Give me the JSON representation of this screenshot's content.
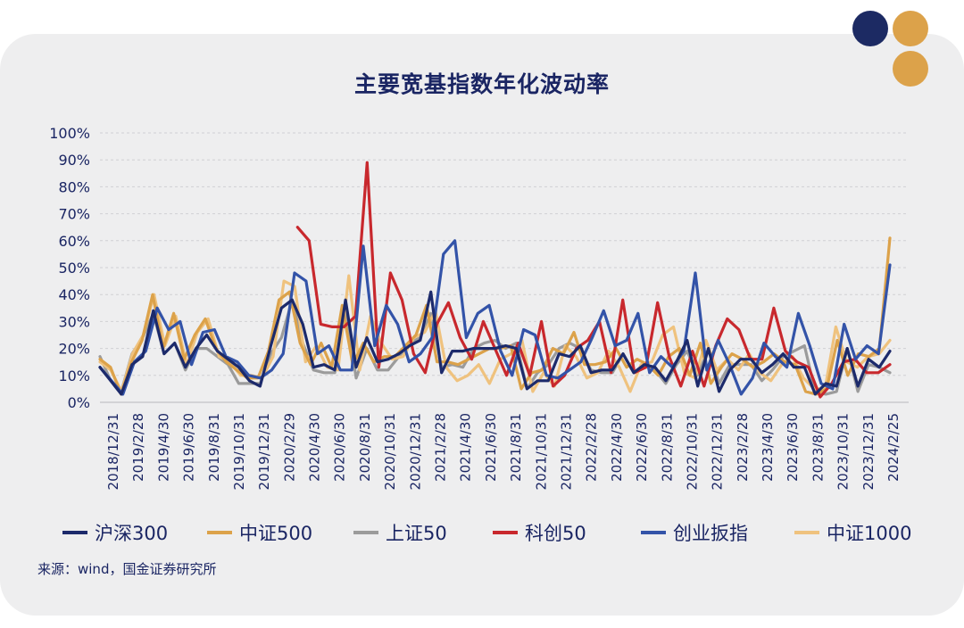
{
  "decor": {
    "colors": [
      "#1c2a63",
      "#dca24a",
      "#dca24a"
    ]
  },
  "source": "来源：wind，国金证券研究所",
  "chart_data": {
    "type": "line",
    "title": "主要宽基指数年化波动率",
    "xlabel": "",
    "ylabel": "",
    "ylim": [
      0,
      100
    ],
    "y_ticks": [
      "0%",
      "10%",
      "20%",
      "30%",
      "40%",
      "50%",
      "60%",
      "70%",
      "80%",
      "90%",
      "100%"
    ],
    "grid": true,
    "legend_position": "bottom",
    "x_tick_labels": [
      "2018/12/31",
      "2019/2/28",
      "2019/4/30",
      "2019/6/30",
      "2019/8/31",
      "2019/10/31",
      "2019/12/31",
      "2020/2/29",
      "2020/4/30",
      "2020/6/30",
      "2020/8/31",
      "2020/10/31",
      "2020/12/31",
      "2021/2/28",
      "2021/4/30",
      "2021/6/30",
      "2021/8/31",
      "2021/10/31",
      "2021/12/31",
      "2022/2/28",
      "2022/4/30",
      "2022/6/30",
      "2022/8/31",
      "2022/10/31",
      "2022/12/31",
      "2023/2/28",
      "2023/4/30",
      "2023/6/30",
      "2023/8/31",
      "2023/10/31",
      "2023/12/31",
      "2024/2/25"
    ],
    "series": [
      {
        "name": "沪深300",
        "color": "#1c2a6b",
        "values": [
          13,
          8,
          3,
          14,
          17,
          34,
          18,
          22,
          13,
          20,
          25,
          19,
          16,
          13,
          8,
          6,
          21,
          35,
          38,
          29,
          13,
          14,
          12,
          38,
          13,
          24,
          15,
          16,
          18,
          21,
          23,
          41,
          11,
          19,
          19,
          20,
          20,
          20,
          21,
          20,
          5,
          8,
          8,
          18,
          17,
          21,
          11,
          12,
          12,
          18,
          11,
          14,
          13,
          8,
          15,
          23,
          6,
          20,
          4,
          12,
          16,
          16,
          11,
          14,
          18,
          13,
          13,
          3,
          7,
          6,
          20,
          6,
          16,
          13,
          19
        ]
      },
      {
        "name": "中证500",
        "color": "#dca24a",
        "values": [
          16,
          13,
          3,
          15,
          23,
          40,
          20,
          33,
          16,
          25,
          31,
          20,
          15,
          12,
          9,
          9,
          19,
          38,
          41,
          22,
          14,
          22,
          13,
          36,
          14,
          22,
          15,
          17,
          17,
          21,
          25,
          36,
          15,
          15,
          14,
          16,
          18,
          20,
          20,
          21,
          5,
          11,
          12,
          20,
          18,
          26,
          14,
          14,
          15,
          20,
          13,
          16,
          14,
          10,
          17,
          20,
          10,
          22,
          7,
          13,
          18,
          16,
          13,
          15,
          18,
          15,
          14,
          4,
          3,
          5,
          23,
          10,
          18,
          17,
          20,
          61
        ]
      },
      {
        "name": "上证50",
        "color": "#9b9b9b",
        "values": [
          17,
          8,
          4,
          18,
          24,
          33,
          18,
          22,
          12,
          20,
          20,
          17,
          14,
          7,
          7,
          7,
          18,
          24,
          38,
          22,
          12,
          11,
          11,
          35,
          9,
          20,
          12,
          12,
          17,
          22,
          24,
          33,
          13,
          14,
          13,
          20,
          22,
          23,
          20,
          22,
          5,
          11,
          14,
          20,
          22,
          20,
          12,
          11,
          11,
          18,
          11,
          14,
          12,
          7,
          14,
          19,
          10,
          20,
          7,
          14,
          14,
          14,
          8,
          12,
          17,
          19,
          21,
          4,
          3,
          4,
          20,
          4,
          14,
          13,
          11
        ]
      },
      {
        "name": "科创50",
        "color": "#c8282d",
        "values": [
          null,
          null,
          null,
          null,
          null,
          null,
          null,
          null,
          null,
          null,
          null,
          null,
          null,
          null,
          null,
          null,
          null,
          65,
          60,
          29,
          28,
          28,
          32,
          89,
          13,
          48,
          38,
          18,
          11,
          29,
          37,
          24,
          16,
          30,
          20,
          10,
          22,
          10,
          30,
          6,
          10,
          20,
          23,
          30,
          11,
          38,
          11,
          13,
          37,
          17,
          6,
          19,
          6,
          21,
          31,
          27,
          16,
          16,
          35,
          19,
          15,
          13,
          2,
          7,
          15,
          16,
          11,
          11,
          14
        ]
      },
      {
        "name": "创业扳指",
        "color": "#3353a8",
        "values": [
          13,
          8,
          3,
          15,
          19,
          35,
          27,
          30,
          14,
          26,
          27,
          17,
          15,
          10,
          9,
          12,
          18,
          48,
          45,
          18,
          21,
          12,
          12,
          58,
          21,
          36,
          29,
          15,
          18,
          24,
          55,
          60,
          24,
          33,
          36,
          19,
          10,
          27,
          25,
          10,
          9,
          12,
          15,
          24,
          34,
          21,
          23,
          33,
          11,
          17,
          13,
          19,
          48,
          12,
          23,
          14,
          3,
          9,
          22,
          17,
          13,
          33,
          21,
          7,
          5,
          29,
          16,
          21,
          18,
          51
        ]
      },
      {
        "name": "中证1000",
        "color": "#efc27e",
        "values": [
          15,
          12,
          4,
          18,
          25,
          40,
          21,
          32,
          14,
          26,
          31,
          17,
          15,
          10,
          10,
          9,
          17,
          45,
          43,
          15,
          21,
          13,
          12,
          47,
          12,
          32,
          22,
          16,
          17,
          24,
          26,
          34,
          13,
          8,
          10,
          14,
          7,
          16,
          18,
          23,
          4,
          11,
          6,
          21,
          17,
          9,
          11,
          19,
          13,
          4,
          14,
          15,
          25,
          28,
          11,
          9,
          23,
          12,
          16,
          12,
          18,
          11,
          8,
          14,
          17,
          9,
          5,
          5,
          28,
          15,
          13,
          17,
          18,
          23
        ]
      }
    ]
  }
}
